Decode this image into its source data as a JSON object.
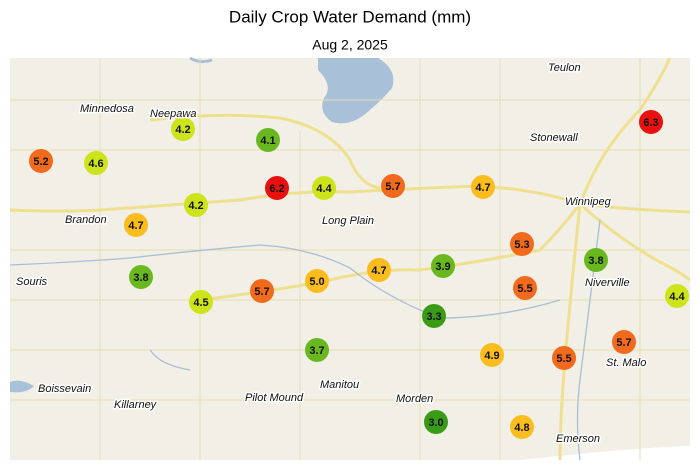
{
  "title": "Daily Crop Water Demand (mm)",
  "subtitle": "Aug 2, 2025",
  "towns": [
    "Teulon",
    "Minnedosa",
    "Neepawa",
    "Stonewall",
    "Winnipeg",
    "Brandon",
    "Long Plain",
    "Souris",
    "Niverville",
    "St. Malo",
    "Boissevain",
    "Killarney",
    "Pilot Mound",
    "Manitou",
    "Morden",
    "Emerson"
  ],
  "stations": [
    {
      "value": "6.3",
      "color": "#e8110f"
    },
    {
      "value": "5.2",
      "color": "#f26a1b"
    },
    {
      "value": "4.6",
      "color": "#cde31a"
    },
    {
      "value": "4.2",
      "color": "#cde31a"
    },
    {
      "value": "4.1",
      "color": "#6ab820"
    },
    {
      "value": "6.2",
      "color": "#e8110f"
    },
    {
      "value": "4.4",
      "color": "#cde31a"
    },
    {
      "value": "5.7",
      "color": "#f26a1b"
    },
    {
      "value": "4.7",
      "color": "#fbbd1e"
    },
    {
      "value": "4.7",
      "color": "#fbbd1e"
    },
    {
      "value": "4.2",
      "color": "#cde31a"
    },
    {
      "value": "5.3",
      "color": "#f26a1b"
    },
    {
      "value": "3.8",
      "color": "#6ab820"
    },
    {
      "value": "4.5",
      "color": "#cde31a"
    },
    {
      "value": "5.7",
      "color": "#f26a1b"
    },
    {
      "value": "5.0",
      "color": "#fbbd1e"
    },
    {
      "value": "4.7",
      "color": "#fbbd1e"
    },
    {
      "value": "3.9",
      "color": "#6ab820"
    },
    {
      "value": "3.8",
      "color": "#6ab820"
    },
    {
      "value": "5.5",
      "color": "#f26a1b"
    },
    {
      "value": "4.4",
      "color": "#cde31a"
    },
    {
      "value": "3.3",
      "color": "#3a9c16"
    },
    {
      "value": "3.7",
      "color": "#6ab820"
    },
    {
      "value": "4.9",
      "color": "#fbbd1e"
    },
    {
      "value": "5.5",
      "color": "#f26a1b"
    },
    {
      "value": "5.7",
      "color": "#f26a1b"
    },
    {
      "value": "3.0",
      "color": "#3a9c16"
    },
    {
      "value": "4.8",
      "color": "#fbbd1e"
    }
  ]
}
